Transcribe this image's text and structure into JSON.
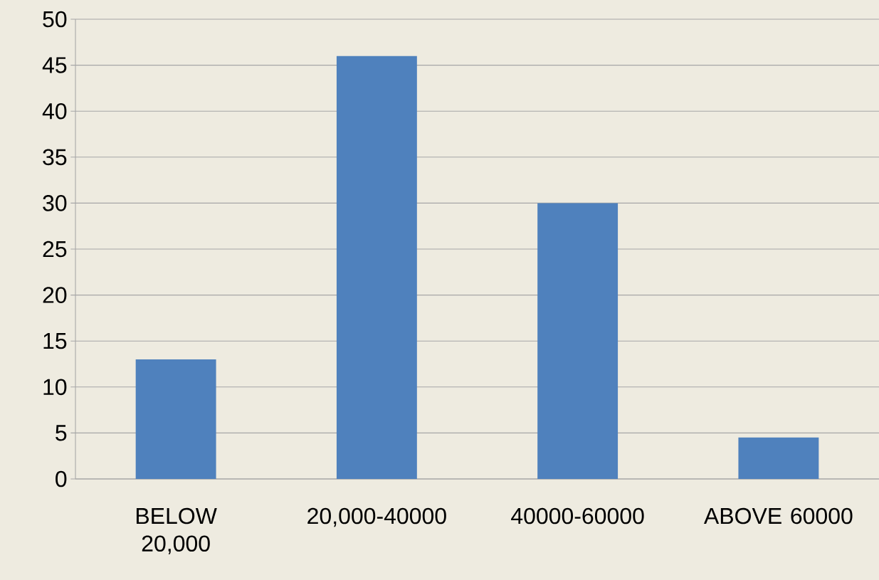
{
  "chart_data": {
    "type": "bar",
    "categories": [
      "BELOW 20,000",
      "20,000-40000",
      "40000-60000",
      "ABOVE 60000"
    ],
    "values": [
      13,
      46,
      30,
      4.5
    ],
    "color": "#4f81bd",
    "ylim": [
      0,
      50
    ],
    "yticks": [
      0,
      5,
      10,
      15,
      20,
      25,
      30,
      35,
      40,
      45,
      50
    ],
    "grid": "y"
  }
}
